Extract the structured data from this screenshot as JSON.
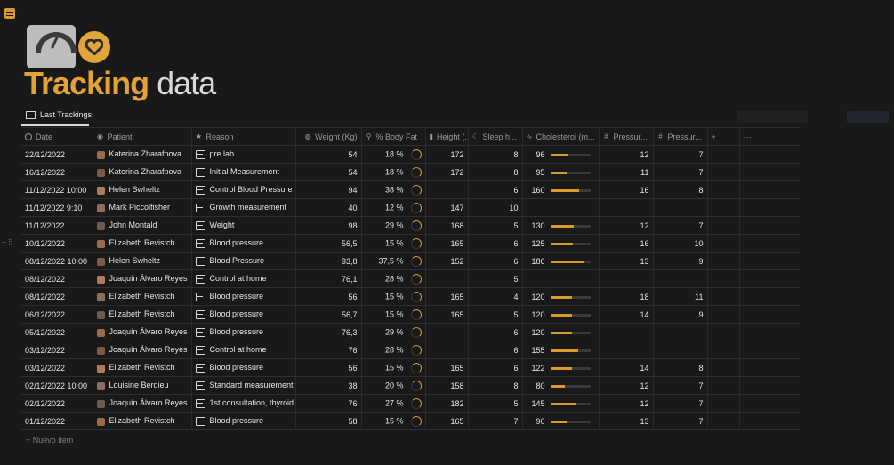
{
  "title": {
    "part1": "Tracking",
    "part2": "data"
  },
  "view": {
    "tab_label": "Last Trackings"
  },
  "columns": [
    "Date",
    "Patient",
    "Reason",
    "Weight (Kg)",
    "% Body Fat",
    "Height (...",
    "Sleep h...",
    "Cholesterol (m...",
    "Pressur...",
    "Pressur..."
  ],
  "header_actions": {
    "add": "+",
    "more": "···"
  },
  "rows": [
    {
      "date": "22/12/2022",
      "patient": "Katerina Zharafpova",
      "reason": "pre lab",
      "weight": "54",
      "fat": "18 %",
      "height": "172",
      "sleep": "8",
      "chol": "96",
      "chol_frac": 0.43,
      "p1": "12",
      "p2": "7"
    },
    {
      "date": "16/12/2022",
      "patient": "Katerina Zharafpova",
      "reason": "Initial Measurement",
      "weight": "54",
      "fat": "18 %",
      "height": "172",
      "sleep": "8",
      "chol": "95",
      "chol_frac": 0.42,
      "p1": "11",
      "p2": "7"
    },
    {
      "date": "11/12/2022 10:00",
      "patient": "Helen Swheltz",
      "reason": "Control Blood Pressure",
      "weight": "94",
      "fat": "38 %",
      "height": "",
      "sleep": "6",
      "chol": "160",
      "chol_frac": 0.72,
      "p1": "16",
      "p2": "8"
    },
    {
      "date": "11/12/2022 9:10",
      "patient": "Mark Piccolfisher",
      "reason": "Growth measurement",
      "weight": "40",
      "fat": "12 %",
      "height": "147",
      "sleep": "10",
      "chol": "",
      "chol_frac": null,
      "p1": "",
      "p2": ""
    },
    {
      "date": "11/12/2022",
      "patient": "John Montald",
      "reason": "Weight",
      "weight": "98",
      "fat": "29 %",
      "height": "168",
      "sleep": "5",
      "chol": "130",
      "chol_frac": 0.58,
      "p1": "12",
      "p2": "7"
    },
    {
      "date": "10/12/2022",
      "patient": "Elizabeth Revistch",
      "reason": "Blood pressure",
      "weight": "56,5",
      "fat": "15 %",
      "height": "165",
      "sleep": "6",
      "chol": "125",
      "chol_frac": 0.56,
      "p1": "16",
      "p2": "10"
    },
    {
      "date": "08/12/2022 10:00",
      "patient": "Helen Swheltz",
      "reason": "Blood Pressure",
      "weight": "93,8",
      "fat": "37,5 %",
      "height": "152",
      "sleep": "6",
      "chol": "186",
      "chol_frac": 0.84,
      "p1": "13",
      "p2": "9"
    },
    {
      "date": "08/12/2022",
      "patient": "Joaquín Álvaro Reyes",
      "reason": "Control at home",
      "weight": "76,1",
      "fat": "28 %",
      "height": "",
      "sleep": "5",
      "chol": "",
      "chol_frac": null,
      "p1": "",
      "p2": ""
    },
    {
      "date": "08/12/2022",
      "patient": "Elizabeth Revistch",
      "reason": "Blood pressure",
      "weight": "56",
      "fat": "15 %",
      "height": "165",
      "sleep": "4",
      "chol": "120",
      "chol_frac": 0.54,
      "p1": "18",
      "p2": "11"
    },
    {
      "date": "06/12/2022",
      "patient": "Elizabeth Revistch",
      "reason": "Blood pressure",
      "weight": "56,7",
      "fat": "15 %",
      "height": "165",
      "sleep": "5",
      "chol": "120",
      "chol_frac": 0.54,
      "p1": "14",
      "p2": "9"
    },
    {
      "date": "05/12/2022",
      "patient": "Joaquín Álvaro Reyes",
      "reason": "Blood pressure",
      "weight": "76,3",
      "fat": "29 %",
      "height": "",
      "sleep": "6",
      "chol": "120",
      "chol_frac": 0.54,
      "p1": "",
      "p2": ""
    },
    {
      "date": "03/12/2022",
      "patient": "Joaquín Álvaro Reyes",
      "reason": "Control at home",
      "weight": "76",
      "fat": "28 %",
      "height": "",
      "sleep": "6",
      "chol": "155",
      "chol_frac": 0.7,
      "p1": "",
      "p2": ""
    },
    {
      "date": "03/12/2022",
      "patient": "Elizabeth Revistch",
      "reason": "Blood pressure",
      "weight": "56",
      "fat": "15 %",
      "height": "165",
      "sleep": "6",
      "chol": "122",
      "chol_frac": 0.55,
      "p1": "14",
      "p2": "8"
    },
    {
      "date": "02/12/2022 10:00",
      "patient": "Louisine Berdieu",
      "reason": "Standard measurement",
      "weight": "38",
      "fat": "20 %",
      "height": "158",
      "sleep": "8",
      "chol": "80",
      "chol_frac": 0.36,
      "p1": "12",
      "p2": "7"
    },
    {
      "date": "02/12/2022",
      "patient": "Joaquín Álvaro Reyes",
      "reason": "1st consultation, thyroid",
      "weight": "76",
      "fat": "27 %",
      "height": "182",
      "sleep": "5",
      "chol": "145",
      "chol_frac": 0.65,
      "p1": "12",
      "p2": "7"
    },
    {
      "date": "01/12/2022",
      "patient": "Elizabeth Revistch",
      "reason": "Blood pressure",
      "weight": "58",
      "fat": "15 %",
      "height": "165",
      "sleep": "7",
      "chol": "90",
      "chol_frac": 0.4,
      "p1": "13",
      "p2": "7"
    }
  ],
  "new_item_label": "Nuevo item",
  "colors": {
    "accent": "#e3a235",
    "bg": "#191919"
  }
}
